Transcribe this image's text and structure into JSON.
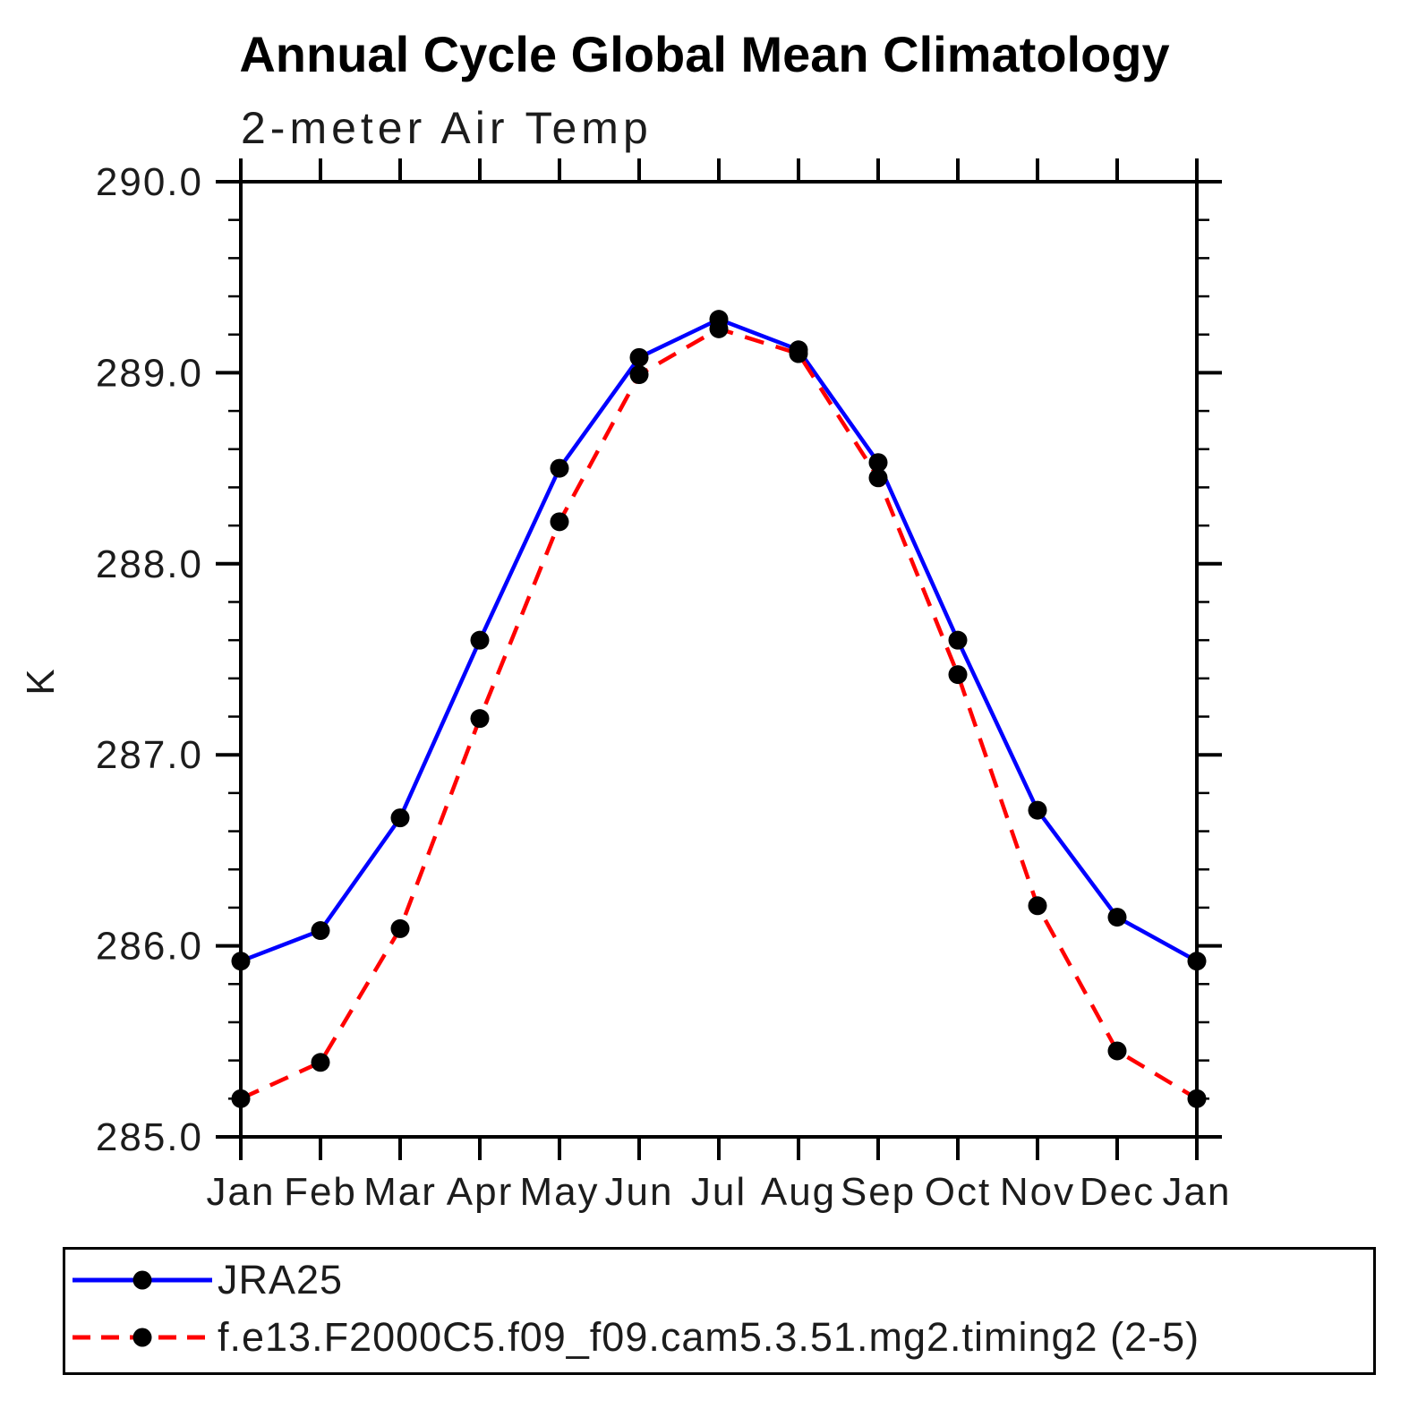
{
  "chart_data": {
    "type": "line",
    "title": "Annual Cycle Global Mean Climatology",
    "subtitle": "2-meter Air Temp",
    "ylabel": "K",
    "xlabel": "",
    "x_categories": [
      "Jan",
      "Feb",
      "Mar",
      "Apr",
      "May",
      "Jun",
      "Jul",
      "Aug",
      "Sep",
      "Oct",
      "Nov",
      "Dec",
      "Jan"
    ],
    "ylim": [
      285.0,
      290.0
    ],
    "y_major_step": 1.0,
    "y_minor_step": 0.2,
    "y_tick_labels": [
      "285.0",
      "286.0",
      "287.0",
      "288.0",
      "289.0",
      "290.0"
    ],
    "grid": false,
    "legend_position": "bottom",
    "axis_color": "#000000",
    "marker_color": "#000000",
    "series": [
      {
        "name": "JRA25",
        "color": "#0000ff",
        "line_style": "solid",
        "marker": "filled-circle",
        "values": [
          285.92,
          286.08,
          286.67,
          287.6,
          288.5,
          289.08,
          289.28,
          289.12,
          288.53,
          287.6,
          286.71,
          286.15,
          285.92
        ]
      },
      {
        "name": "f.e13.F2000C5.f09_f09.cam5.3.51.mg2.timing2 (2-5)",
        "color": "#ff0000",
        "line_style": "dashed",
        "marker": "filled-circle",
        "values": [
          285.2,
          285.39,
          286.09,
          287.19,
          288.22,
          288.99,
          289.23,
          289.1,
          288.45,
          287.42,
          286.21,
          285.45,
          285.2
        ]
      }
    ]
  }
}
